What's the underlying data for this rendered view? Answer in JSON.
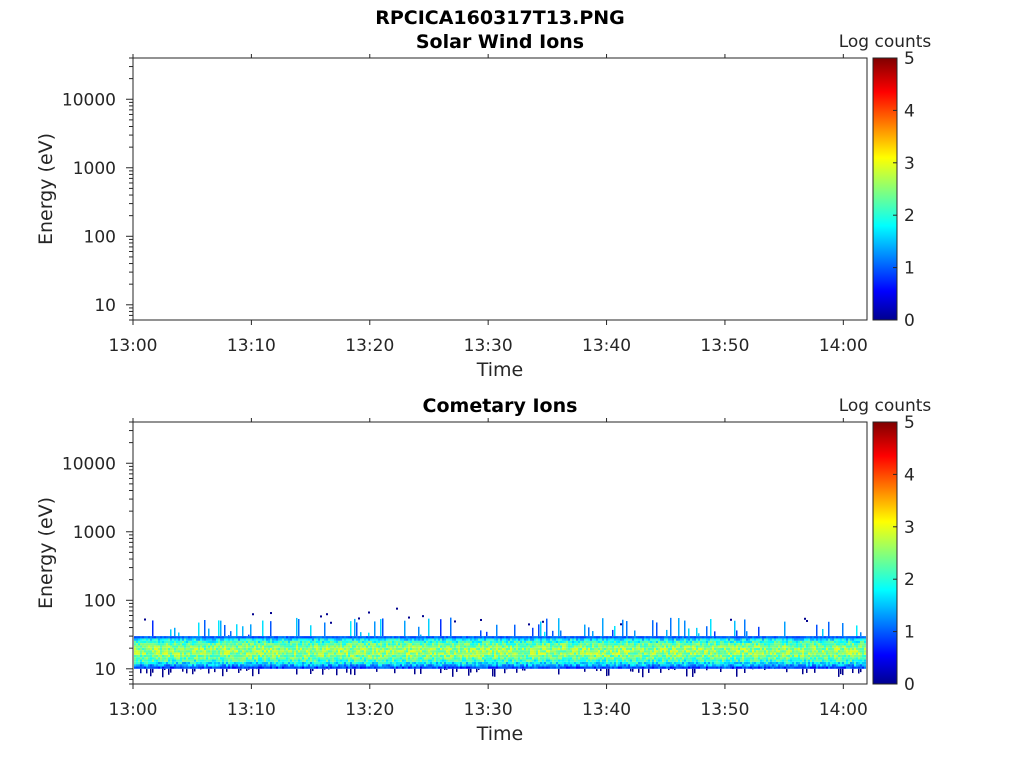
{
  "figure_title": "RPCICA160317T13.PNG",
  "chart_data": [
    {
      "type": "heatmap",
      "title": "Solar Wind Ions",
      "xlabel": "Time",
      "ylabel": "Energy (eV)",
      "x_ticks": [
        "13:00",
        "13:10",
        "13:20",
        "13:30",
        "13:40",
        "13:50",
        "14:00"
      ],
      "x_range": [
        "13:00",
        "14:02"
      ],
      "y_scale": "log",
      "y_ticks": [
        "10",
        "100",
        "1000",
        "10000"
      ],
      "y_range": [
        6,
        40000
      ],
      "colorbar": {
        "label": "Log counts",
        "ticks": [
          "0",
          "1",
          "2",
          "3",
          "4",
          "5"
        ],
        "range": [
          0,
          5
        ],
        "colormap": "jet"
      },
      "band": null
    },
    {
      "type": "heatmap",
      "title": "Cometary Ions",
      "xlabel": "Time",
      "ylabel": "Energy (eV)",
      "x_ticks": [
        "13:00",
        "13:10",
        "13:20",
        "13:30",
        "13:40",
        "13:50",
        "14:00"
      ],
      "x_range": [
        "13:00",
        "14:02"
      ],
      "y_scale": "log",
      "y_ticks": [
        "10",
        "100",
        "1000",
        "10000"
      ],
      "y_range": [
        6,
        40000
      ],
      "colorbar": {
        "label": "Log counts",
        "ticks": [
          "0",
          "1",
          "2",
          "3",
          "4",
          "5"
        ],
        "range": [
          0,
          5
        ],
        "colormap": "jet"
      },
      "band": {
        "energy_min_eV": 10,
        "energy_max_eV": 30,
        "peak_energy_eV": 18,
        "peak_log_counts": 2.6,
        "sparse_max_energy_eV": 80
      }
    }
  ]
}
